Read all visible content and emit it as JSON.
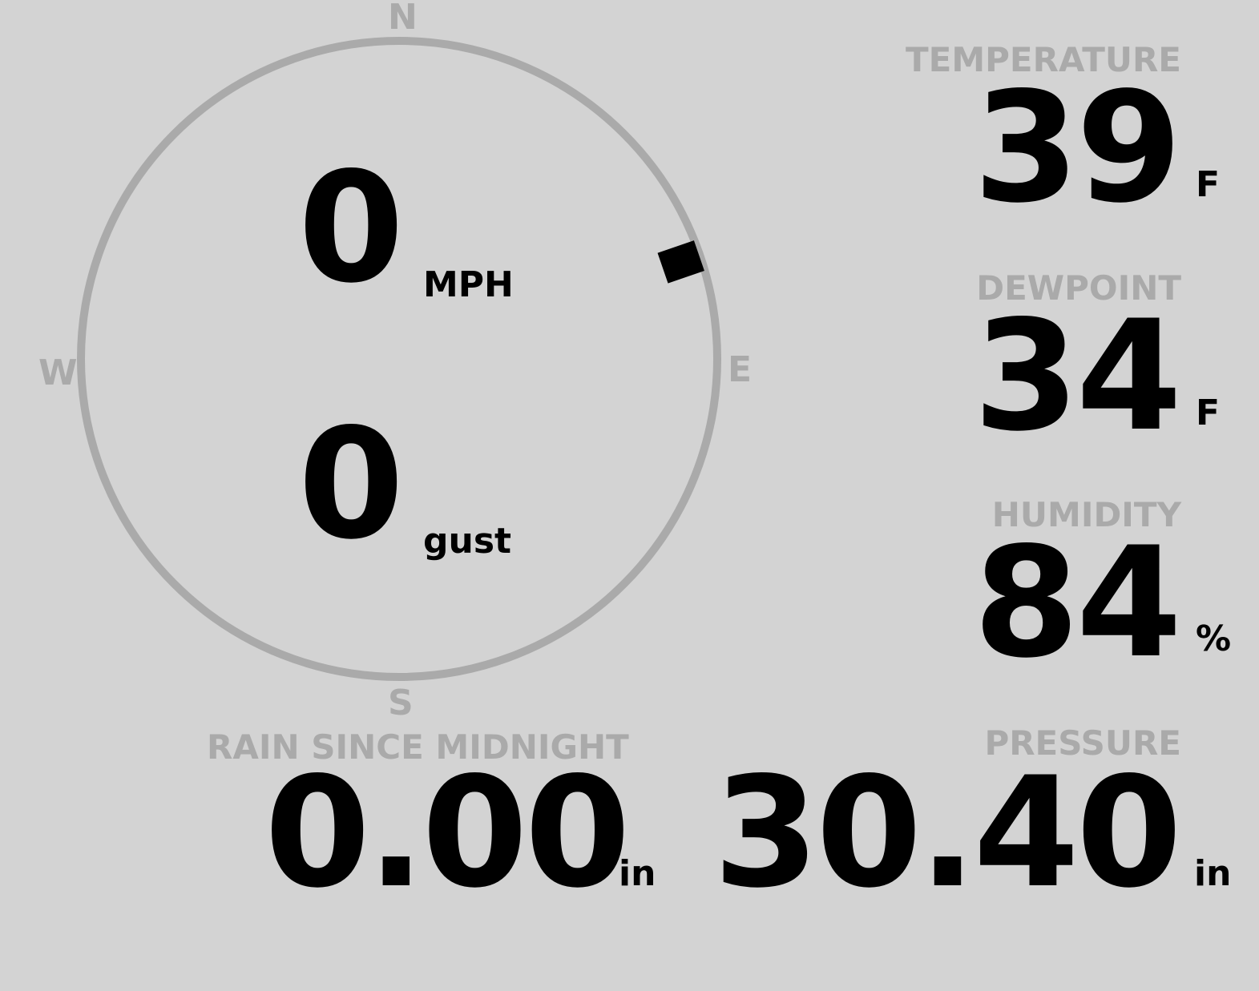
{
  "colors": {
    "background": "#d3d3d3",
    "label": "#aaaaaa",
    "value": "#000000"
  },
  "wind": {
    "compass": {
      "n": "N",
      "e": "E",
      "s": "S",
      "w": "W"
    },
    "direction_deg": 71,
    "speed": "0",
    "speed_unit": "MPH",
    "gust": "0",
    "gust_unit": "gust"
  },
  "temperature": {
    "label": "TEMPERATURE",
    "value": "39",
    "unit": "F"
  },
  "dewpoint": {
    "label": "DEWPOINT",
    "value": "34",
    "unit": "F"
  },
  "humidity": {
    "label": "HUMIDITY",
    "value": "84",
    "unit": "%"
  },
  "rain": {
    "label": "RAIN SINCE MIDNIGHT",
    "value": "0.00",
    "unit": "in"
  },
  "pressure": {
    "label": "PRESSURE",
    "value": "30.40",
    "unit": "in"
  }
}
